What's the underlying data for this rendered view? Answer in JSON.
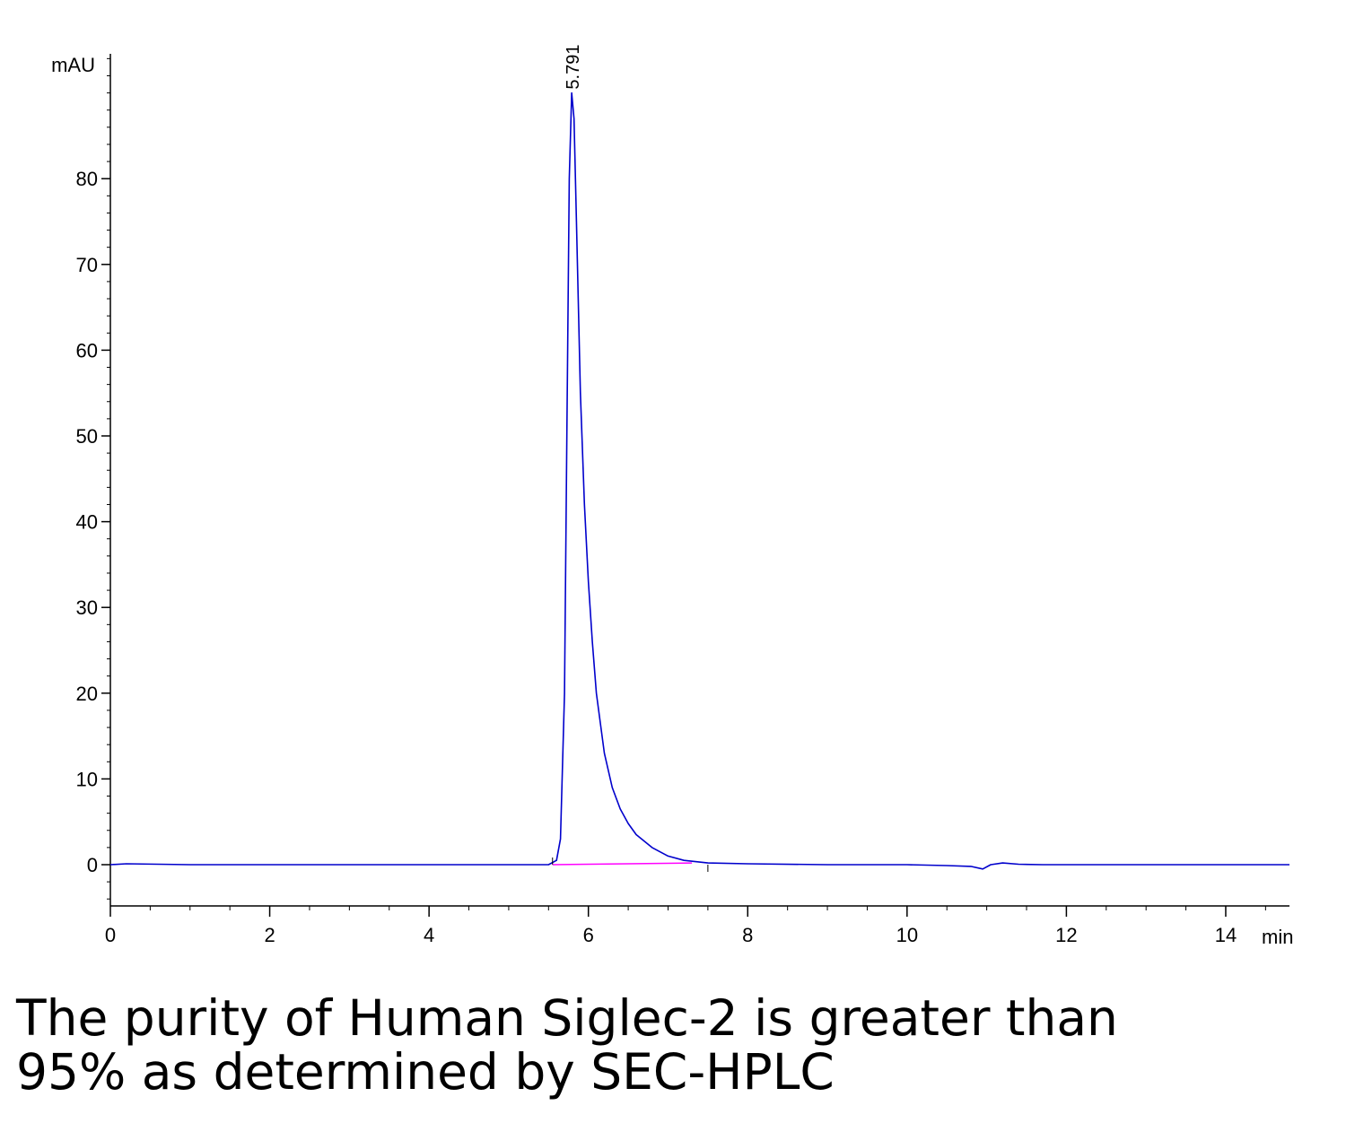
{
  "chart_data": {
    "type": "line",
    "title": "",
    "ylabel": "mAU",
    "xlabel": "min",
    "xlim": [
      0,
      14.8
    ],
    "ylim": [
      -5,
      95
    ],
    "x_ticks": [
      0,
      2,
      4,
      6,
      8,
      10,
      12,
      14
    ],
    "y_ticks": [
      0,
      10,
      20,
      30,
      40,
      50,
      60,
      70,
      80
    ],
    "grid": false,
    "series": [
      {
        "color": "#0000cc",
        "x": [
          0,
          0.2,
          1,
          2,
          3,
          4,
          5,
          5.5,
          5.6,
          5.65,
          5.7,
          5.73,
          5.76,
          5.791,
          5.82,
          5.85,
          5.9,
          5.95,
          6.0,
          6.05,
          6.1,
          6.2,
          6.3,
          6.4,
          6.5,
          6.6,
          6.8,
          7.0,
          7.2,
          7.5,
          8,
          9,
          10,
          10.5,
          10.8,
          10.95,
          11.05,
          11.2,
          11.4,
          11.7,
          12,
          13,
          14,
          14.8
        ],
        "y": [
          0,
          0.1,
          0,
          0,
          0,
          0,
          0,
          0,
          0.5,
          3,
          20,
          50,
          80,
          90,
          87,
          75,
          55,
          42,
          33,
          26,
          20,
          13,
          9,
          6.5,
          4.8,
          3.5,
          2,
          1,
          0.5,
          0.2,
          0.1,
          0,
          0,
          -0.1,
          -0.2,
          -0.5,
          0,
          0.2,
          0.05,
          0,
          0,
          0,
          0,
          0
        ]
      }
    ],
    "baseline": {
      "color": "#ff00ff",
      "x": [
        5.55,
        7.3
      ],
      "y": [
        0,
        0.2
      ]
    },
    "annotations": [
      {
        "text": "5.791",
        "x": 5.791,
        "y": 90
      }
    ]
  },
  "caption": {
    "line1": "The purity of Human Siglec-2 is greater than",
    "line2": "95% as determined by SEC-HPLC"
  }
}
